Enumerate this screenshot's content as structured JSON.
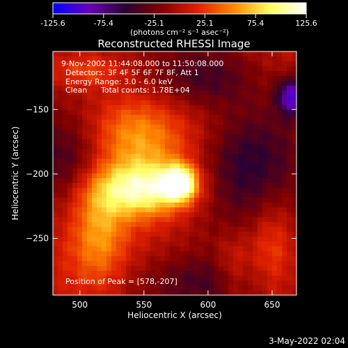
{
  "chart_data": {
    "type": "heatmap",
    "title": "Reconstructed RHESSI Image",
    "xlabel": "Heliocentric X (arcsec)",
    "ylabel": "Heliocentric Y (arcsec)",
    "xlim": [
      479,
      669
    ],
    "ylim": [
      -294,
      -105
    ],
    "x_ticks": [
      500,
      550,
      600,
      650
    ],
    "y_ticks": [
      -150,
      -200,
      -250
    ],
    "colorbar": {
      "range": [
        -125.6,
        125.6
      ],
      "ticks": [
        "-125.6",
        "-75.4",
        "-25.1",
        "25.1",
        "75.4",
        "125.6"
      ],
      "unit_label": "(photons cm⁻² s⁻¹ asec⁻²)",
      "colors": [
        "#0000ff",
        "#6a00b8",
        "#2a0030",
        "#800000",
        "#e02000",
        "#ff8800",
        "#ffff60",
        "#ffffff"
      ]
    },
    "annotations": {
      "time_range": "9-Nov-2002 11:44:08.000 to 11:50:08.000",
      "detectors": "Detectors: 3F 4F 5F 6F 7F 8F, Att 1",
      "energy": "Energy Range: 3.0 - 6.0 keV",
      "method": "Clean",
      "counts": "Total counts: 1.78E+04",
      "peak": "Position of Peak = [578,-207]"
    },
    "peak": {
      "x": 578,
      "y": -207,
      "value": 125.6
    },
    "sources": [
      {
        "x": 578,
        "y": -207,
        "amplitude": 120,
        "sx": 9,
        "sy": 9
      },
      {
        "x": 548,
        "y": -212,
        "amplitude": 90,
        "sx": 28,
        "sy": 14
      },
      {
        "x": 540,
        "y": -170,
        "amplitude": 55,
        "sx": 25,
        "sy": 22
      },
      {
        "x": 515,
        "y": -245,
        "amplitude": 45,
        "sx": 14,
        "sy": 30
      },
      {
        "x": 650,
        "y": -260,
        "amplitude": 40,
        "sx": 13,
        "sy": 32
      },
      {
        "x": 620,
        "y": -275,
        "amplitude": 30,
        "sx": 10,
        "sy": 20
      },
      {
        "x": 505,
        "y": -120,
        "amplitude": 35,
        "sx": 22,
        "sy": 10
      }
    ],
    "background": [
      {
        "x": 490,
        "y": -190,
        "amplitude": -40,
        "sx": 25,
        "sy": 25
      },
      {
        "x": 600,
        "y": -125,
        "amplitude": -45,
        "sx": 30,
        "sy": 18
      },
      {
        "x": 630,
        "y": -190,
        "amplitude": -55,
        "sx": 30,
        "sy": 35
      },
      {
        "x": 600,
        "y": -285,
        "amplitude": -35,
        "sx": 35,
        "sy": 15
      },
      {
        "x": 665,
        "y": -140,
        "amplitude": -90,
        "sx": 8,
        "sy": 10
      }
    ]
  },
  "footer": {
    "date": "3-May-2022 02:04"
  }
}
